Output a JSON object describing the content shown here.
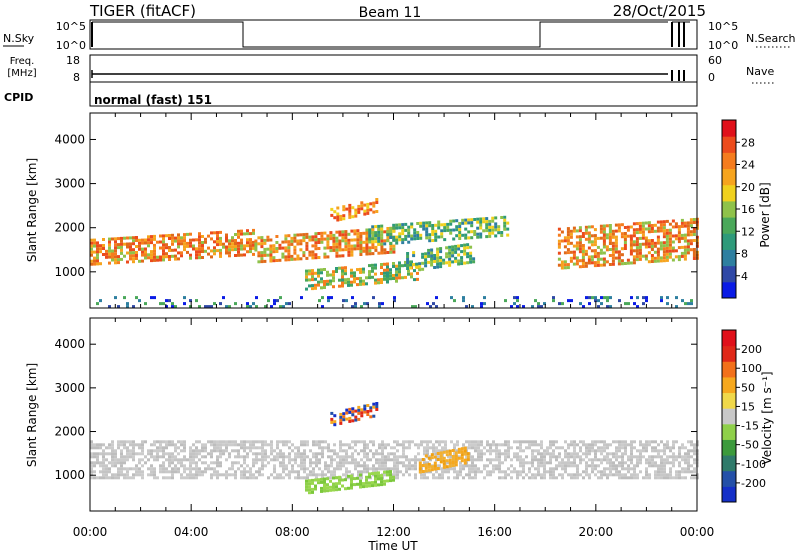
{
  "header": {
    "station": "TIGER (fitACF)",
    "beam": "Beam 11",
    "date": "28/Oct/2015"
  },
  "noise_panel": {
    "left_label": "N.Sky",
    "left_ticks": [
      "10^5",
      "10^0"
    ],
    "right_ticks": [
      "10^5",
      "10^0"
    ],
    "right_label": "N.Search"
  },
  "freq_panel": {
    "left_label_1": "Freq.",
    "left_label_2": "[MHz]",
    "left_ticks": [
      "18",
      "8"
    ],
    "right_ticks": [
      "60",
      "0"
    ],
    "right_label": "Nave"
  },
  "cpid_panel": {
    "label": "CPID",
    "mode": "normal (fast) 151"
  },
  "chart_data": [
    {
      "type": "heatmap",
      "ylabel": "Slant Range [km]",
      "ylim": [
        180,
        4600
      ],
      "yticks": [
        "1000",
        "2000",
        "3000",
        "4000"
      ],
      "xlim_hours": [
        0,
        24
      ],
      "xticks": [
        "00:00",
        "04:00",
        "08:00",
        "12:00",
        "16:00",
        "20:00",
        "00:00"
      ],
      "colorbar": {
        "label": "Power [dB]",
        "ticks": [
          "4",
          "8",
          "12",
          "16",
          "20",
          "24",
          "28"
        ],
        "colors": [
          "#0a1be6",
          "#2f48a6",
          "#2e7fa0",
          "#2e9a7a",
          "#4aa85a",
          "#8fc24a",
          "#f0d11e",
          "#f6a41e",
          "#f57c1e",
          "#ec4b1c",
          "#e0101a"
        ]
      },
      "echo_regions": [
        {
          "t0": 0.0,
          "t1": 6.5,
          "r0": 1150,
          "r1": 1750,
          "intensity": "orange-red"
        },
        {
          "t0": 6.5,
          "t1": 12.0,
          "r0": 1250,
          "r1": 1800,
          "intensity": "orange-red"
        },
        {
          "t0": 9.5,
          "t1": 11.3,
          "r0": 2150,
          "r1": 2450,
          "intensity": "orange"
        },
        {
          "t0": 11.0,
          "t1": 16.5,
          "r0": 1600,
          "r1": 2050,
          "intensity": "green"
        },
        {
          "t0": 8.5,
          "t1": 13.0,
          "r0": 620,
          "r1": 1050,
          "intensity": "green-orange"
        },
        {
          "t0": 12.5,
          "t1": 15.2,
          "r0": 980,
          "r1": 1450,
          "intensity": "green"
        },
        {
          "t0": 18.5,
          "t1": 24.0,
          "r0": 1100,
          "r1": 2000,
          "intensity": "orange-red"
        },
        {
          "t0": 0.0,
          "t1": 24.0,
          "r0": 180,
          "r1": 450,
          "intensity": "blue-green"
        }
      ]
    },
    {
      "type": "heatmap",
      "ylabel": "Slant Range [km]",
      "ylim": [
        180,
        4600
      ],
      "yticks": [
        "1000",
        "2000",
        "3000",
        "4000"
      ],
      "xlabel": "Time UT",
      "xlim_hours": [
        0,
        24
      ],
      "xticks": [
        "00:00",
        "04:00",
        "08:00",
        "12:00",
        "16:00",
        "20:00",
        "00:00"
      ],
      "colorbar": {
        "label": "Velocity [m s⁻¹]",
        "ticks": [
          "200",
          "100",
          "50",
          "15",
          "-15",
          "-50",
          "-100",
          "-200"
        ],
        "colors": [
          "#1530c8",
          "#2450a8",
          "#2f7a6a",
          "#3c9a3c",
          "#8fd04a",
          "#c8c8c8",
          "#f0d84a",
          "#f6a81e",
          "#f2701a",
          "#e02818",
          "#e0101a"
        ]
      },
      "echo_regions": [
        {
          "t0": 0.0,
          "t1": 24.0,
          "r0": 950,
          "r1": 1800,
          "intensity": "grey"
        },
        {
          "t0": 9.5,
          "t1": 11.3,
          "r0": 2150,
          "r1": 2450,
          "intensity": "blue-orange"
        },
        {
          "t0": 8.5,
          "t1": 12.0,
          "r0": 600,
          "r1": 900,
          "intensity": "green"
        },
        {
          "t0": 13.0,
          "t1": 15.0,
          "r0": 1050,
          "r1": 1450,
          "intensity": "orange"
        }
      ]
    }
  ]
}
